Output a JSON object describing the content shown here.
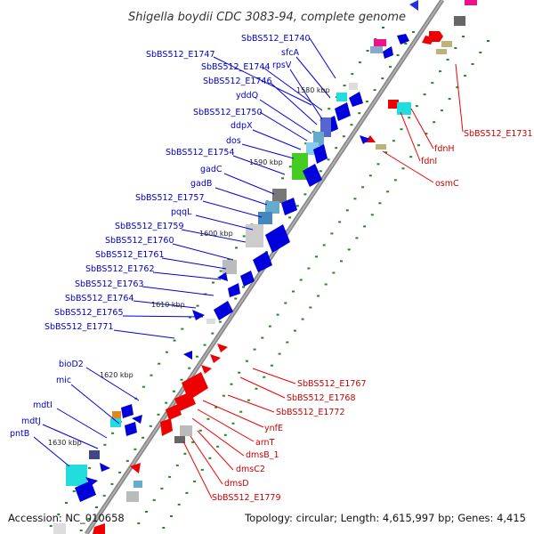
{
  "title": "Shigella boydii CDC 3083-94, complete genome",
  "footer": {
    "accession": "Accession: NC_010658",
    "topology": "Topology: circular; Length: 4,615,997 bp; Genes: 4,415"
  },
  "colors": {
    "forward_strand": "#0000dd",
    "reverse_strand": "#ee0000",
    "backbone": "#888888",
    "gc_dots": "#228822"
  },
  "ticks": [
    "1580 kbp",
    "1590 kbp",
    "1600 kbp",
    "1610 kbp",
    "1620 kbp",
    "1630 kbp"
  ],
  "left_labels": [
    "SbBS512_E1740",
    "SbBS512_E1747",
    "sfcA",
    "SbBS512_E1744",
    "rpsV",
    "SbBS512_E1746",
    "yddQ",
    "SbBS512_E1750",
    "ddpX",
    "dos",
    "SbBS512_E1754",
    "gadC",
    "gadB",
    "SbBS512_E1757",
    "pqqL",
    "SbBS512_E1759",
    "SbBS512_E1760",
    "SbBS512_E1761",
    "SbBS512_E1762",
    "SbBS512_E1763",
    "SbBS512_E1764",
    "SbBS512_E1765",
    "SbBS512_E1771",
    "bioD2",
    "mic",
    "mdtI",
    "mdtJ",
    "pntB"
  ],
  "right_labels": [
    "SbBS512_E1731",
    "fdnH",
    "fdnI",
    "osmC",
    "SbBS512_E1767",
    "SbBS512_E1768",
    "SbBS512_E1772",
    "ynfE",
    "arnT",
    "dmsB_1",
    "dmsC2",
    "dmsD",
    "SbBS512_E1779"
  ]
}
